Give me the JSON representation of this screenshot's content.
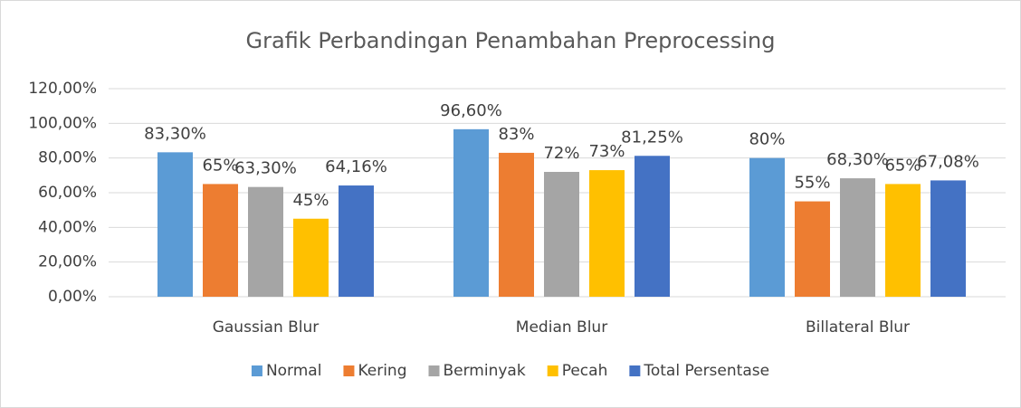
{
  "chart_data": {
    "type": "bar",
    "title": "Grafik Perbandingan Penambahan Preprocessing",
    "categories": [
      "Gaussian Blur",
      "Median Blur",
      "Billateral Blur"
    ],
    "series": [
      {
        "name": "Normal",
        "color": "#5b9bd5",
        "values": [
          83.3,
          96.6,
          80
        ],
        "value_labels": [
          "83,30%",
          "96,60%",
          "80%"
        ]
      },
      {
        "name": "Kering",
        "color": "#ed7d31",
        "values": [
          65,
          83,
          55
        ],
        "value_labels": [
          "65%",
          "83%",
          "55%"
        ]
      },
      {
        "name": "Berminyak",
        "color": "#a5a5a5",
        "values": [
          63.3,
          72,
          68.3
        ],
        "value_labels": [
          "63,30%",
          "72%",
          "68,30%"
        ]
      },
      {
        "name": "Pecah",
        "color": "#ffc000",
        "values": [
          45,
          73,
          65
        ],
        "value_labels": [
          "45%",
          "73%",
          "65%"
        ]
      },
      {
        "name": "Total Persentase",
        "color": "#4472c4",
        "values": [
          64.16,
          81.25,
          67.08
        ],
        "value_labels": [
          "64,16%",
          "81,25%",
          "67,08%"
        ]
      }
    ],
    "ylim": [
      0,
      120
    ],
    "yticks": [
      {
        "value": 0,
        "label": "0,00%"
      },
      {
        "value": 20,
        "label": "20,00%"
      },
      {
        "value": 40,
        "label": "40,00%"
      },
      {
        "value": 60,
        "label": "60,00%"
      },
      {
        "value": 80,
        "label": "80,00%"
      },
      {
        "value": 100,
        "label": "100,00%"
      },
      {
        "value": 120,
        "label": "120,00%"
      }
    ],
    "grid": true,
    "legend": "bottom"
  }
}
